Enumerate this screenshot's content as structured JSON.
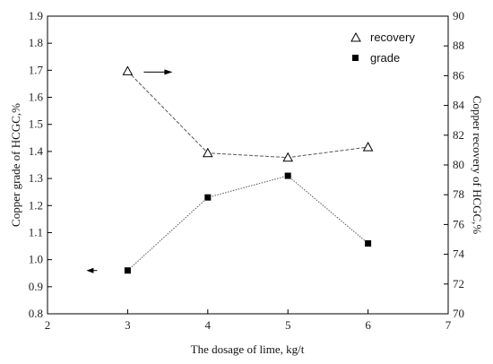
{
  "chart_data": {
    "type": "line",
    "x": [
      3,
      4,
      5,
      6
    ],
    "xlabel": "The dosage of lime,  kg/t",
    "xlim": [
      2,
      7
    ],
    "xticks": [
      2,
      3,
      4,
      5,
      6,
      7
    ],
    "ylabel_left": "Copper grade of HCGC,%",
    "ylim_left": [
      0.8,
      1.9
    ],
    "yticks_left": [
      0.8,
      0.9,
      1.0,
      1.1,
      1.2,
      1.3,
      1.4,
      1.5,
      1.6,
      1.7,
      1.8,
      1.9
    ],
    "ylabel_right": "Copper recovery of HCGC,%",
    "ylim_right": [
      70,
      90
    ],
    "yticks_right": [
      70,
      72,
      74,
      76,
      78,
      80,
      82,
      84,
      86,
      88,
      90
    ],
    "series": [
      {
        "name": "recovery",
        "axis": "right",
        "marker": "open-triangle",
        "line_style": "dashed",
        "values": [
          86.3,
          80.8,
          80.5,
          81.2
        ]
      },
      {
        "name": "grade",
        "axis": "left",
        "marker": "filled-square",
        "line_style": "dotted",
        "values": [
          0.96,
          1.23,
          1.31,
          1.06
        ]
      }
    ],
    "legend_position": "top-right",
    "annotations": [
      {
        "type": "arrow",
        "direction": "right",
        "refers_to": "recovery"
      },
      {
        "type": "arrow",
        "direction": "left",
        "refers_to": "grade"
      }
    ],
    "grid": false,
    "colors": {
      "axis": "#000000",
      "marker": "#000000",
      "line": "#555555"
    }
  }
}
